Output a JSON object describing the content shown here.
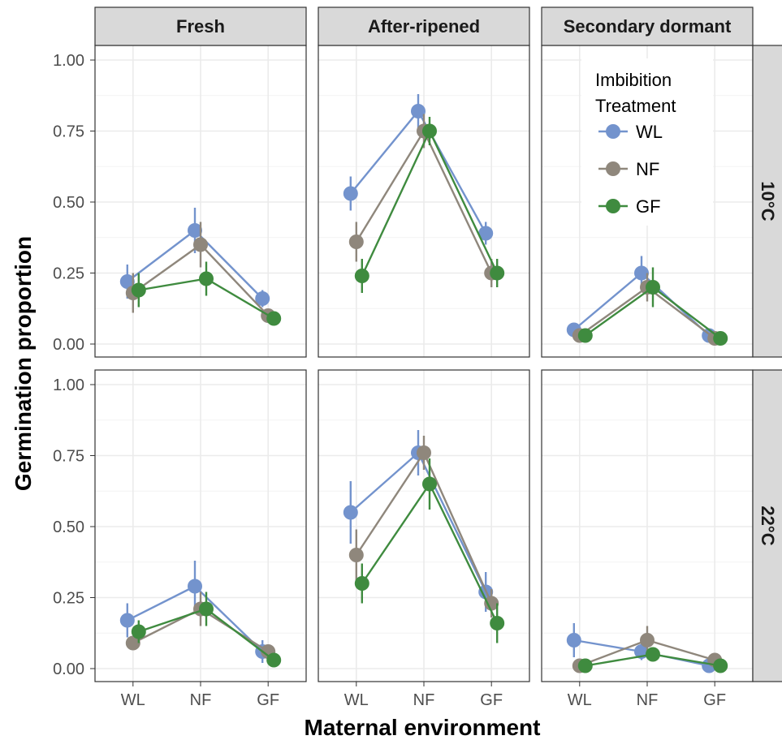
{
  "chart_data": {
    "type": "line",
    "xlabel": "Maternal environment",
    "ylabel": "Germination proportion",
    "categories": [
      "WL",
      "NF",
      "GF"
    ],
    "ylim": [
      0,
      1
    ],
    "yticks": [
      "0.00",
      "0.25",
      "0.50",
      "0.75",
      "1.00"
    ],
    "grid": true,
    "col_facets": [
      "Fresh",
      "After-ripened",
      "Secondary dormant"
    ],
    "row_facets": [
      "10°C",
      "22°C"
    ],
    "legend": {
      "title_line1": "Imbibition",
      "title_line2": "Treatment",
      "placement": "inside top-right panel",
      "entries": [
        "WL",
        "NF",
        "GF"
      ]
    },
    "series_style": [
      {
        "name": "WL",
        "color": "#7393cd"
      },
      {
        "name": "NF",
        "color": "#8f877c"
      },
      {
        "name": "GF",
        "color": "#3f8b3f"
      }
    ],
    "panels": [
      {
        "row": "10°C",
        "col": "Fresh",
        "series": [
          {
            "name": "WL",
            "values": [
              0.22,
              0.4,
              0.16
            ],
            "err": [
              0.06,
              0.08,
              0.03
            ]
          },
          {
            "name": "NF",
            "values": [
              0.18,
              0.35,
              0.1
            ],
            "err": [
              0.07,
              0.08,
              0.02
            ]
          },
          {
            "name": "GF",
            "values": [
              0.19,
              0.23,
              0.09
            ],
            "err": [
              0.06,
              0.06,
              0.02
            ]
          }
        ]
      },
      {
        "row": "10°C",
        "col": "After-ripened",
        "series": [
          {
            "name": "WL",
            "values": [
              0.53,
              0.82,
              0.39
            ],
            "err": [
              0.06,
              0.06,
              0.04
            ]
          },
          {
            "name": "NF",
            "values": [
              0.36,
              0.75,
              0.25
            ],
            "err": [
              0.07,
              0.06,
              0.05
            ]
          },
          {
            "name": "GF",
            "values": [
              0.24,
              0.75,
              0.25
            ],
            "err": [
              0.06,
              0.05,
              0.05
            ]
          }
        ]
      },
      {
        "row": "10°C",
        "col": "Secondary dormant",
        "series": [
          {
            "name": "WL",
            "values": [
              0.05,
              0.25,
              0.03
            ],
            "err": [
              0.02,
              0.06,
              0.01
            ]
          },
          {
            "name": "NF",
            "values": [
              0.03,
              0.2,
              0.02
            ],
            "err": [
              0.02,
              0.05,
              0.01
            ]
          },
          {
            "name": "GF",
            "values": [
              0.03,
              0.2,
              0.02
            ],
            "err": [
              0.02,
              0.07,
              0.01
            ]
          }
        ]
      },
      {
        "row": "22°C",
        "col": "Fresh",
        "series": [
          {
            "name": "WL",
            "values": [
              0.17,
              0.29,
              0.06
            ],
            "err": [
              0.06,
              0.09,
              0.04
            ]
          },
          {
            "name": "NF",
            "values": [
              0.09,
              0.21,
              0.06
            ],
            "err": [
              0.02,
              0.06,
              0.02
            ]
          },
          {
            "name": "GF",
            "values": [
              0.13,
              0.21,
              0.03
            ],
            "err": [
              0.04,
              0.06,
              0.01
            ]
          }
        ]
      },
      {
        "row": "22°C",
        "col": "After-ripened",
        "series": [
          {
            "name": "WL",
            "values": [
              0.55,
              0.76,
              0.27
            ],
            "err": [
              0.11,
              0.08,
              0.07
            ]
          },
          {
            "name": "NF",
            "values": [
              0.4,
              0.76,
              0.23
            ],
            "err": [
              0.09,
              0.06,
              0.05
            ]
          },
          {
            "name": "GF",
            "values": [
              0.3,
              0.65,
              0.16
            ],
            "err": [
              0.07,
              0.09,
              0.07
            ]
          }
        ]
      },
      {
        "row": "22°C",
        "col": "Secondary dormant",
        "series": [
          {
            "name": "WL",
            "values": [
              0.1,
              0.06,
              0.01
            ],
            "err": [
              0.06,
              0.03,
              0.01
            ]
          },
          {
            "name": "NF",
            "values": [
              0.01,
              0.1,
              0.03
            ],
            "err": [
              0.01,
              0.05,
              0.01
            ]
          },
          {
            "name": "GF",
            "values": [
              0.01,
              0.05,
              0.01
            ],
            "err": [
              0.01,
              0.02,
              0.01
            ]
          }
        ]
      }
    ]
  }
}
